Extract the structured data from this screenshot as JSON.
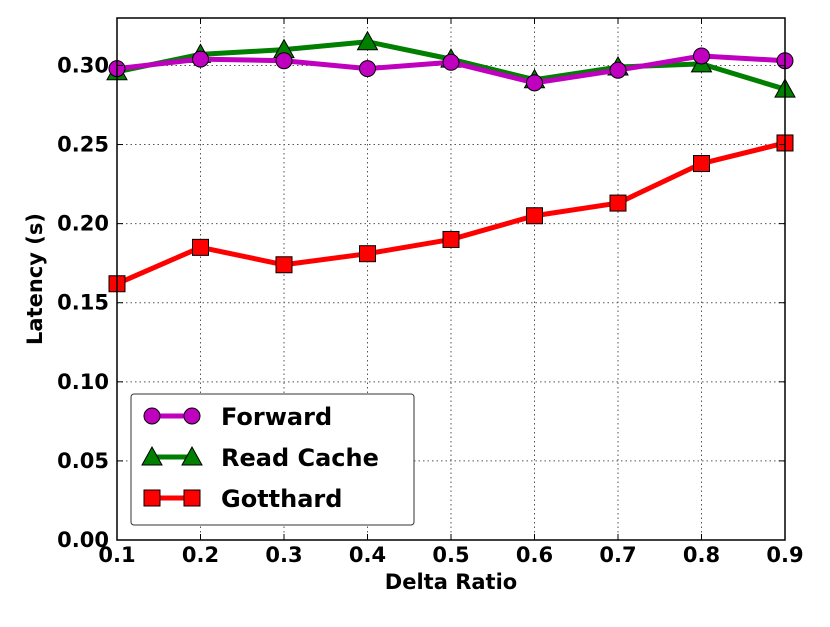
{
  "chart_data": {
    "type": "line",
    "title": "",
    "xlabel": "Delta Ratio",
    "ylabel": "Latency (s)",
    "x": [
      0.1,
      0.2,
      0.3,
      0.4,
      0.5,
      0.6,
      0.7,
      0.8,
      0.9
    ],
    "xlim": [
      0.1,
      0.9
    ],
    "ylim": [
      0.0,
      0.33
    ],
    "xticks": [
      "0.1",
      "0.2",
      "0.3",
      "0.4",
      "0.5",
      "0.6",
      "0.7",
      "0.8",
      "0.9"
    ],
    "yticks": [
      "0.00",
      "0.05",
      "0.10",
      "0.15",
      "0.20",
      "0.25",
      "0.30"
    ],
    "ytick_values": [
      0.0,
      0.05,
      0.1,
      0.15,
      0.2,
      0.25,
      0.3
    ],
    "grid": true,
    "legend_position": "bottom-left",
    "series": [
      {
        "name": "Forward",
        "color": "#bf00bf",
        "marker": "circle",
        "values": [
          0.298,
          0.304,
          0.303,
          0.298,
          0.302,
          0.289,
          0.297,
          0.306,
          0.303
        ]
      },
      {
        "name": "Read Cache",
        "color": "#007f00",
        "marker": "triangle",
        "values": [
          0.296,
          0.307,
          0.31,
          0.315,
          0.304,
          0.291,
          0.299,
          0.301,
          0.285
        ]
      },
      {
        "name": "Gotthard",
        "color": "#ff0000",
        "marker": "square",
        "values": [
          0.162,
          0.185,
          0.174,
          0.181,
          0.19,
          0.205,
          0.213,
          0.238,
          0.251
        ]
      }
    ]
  }
}
